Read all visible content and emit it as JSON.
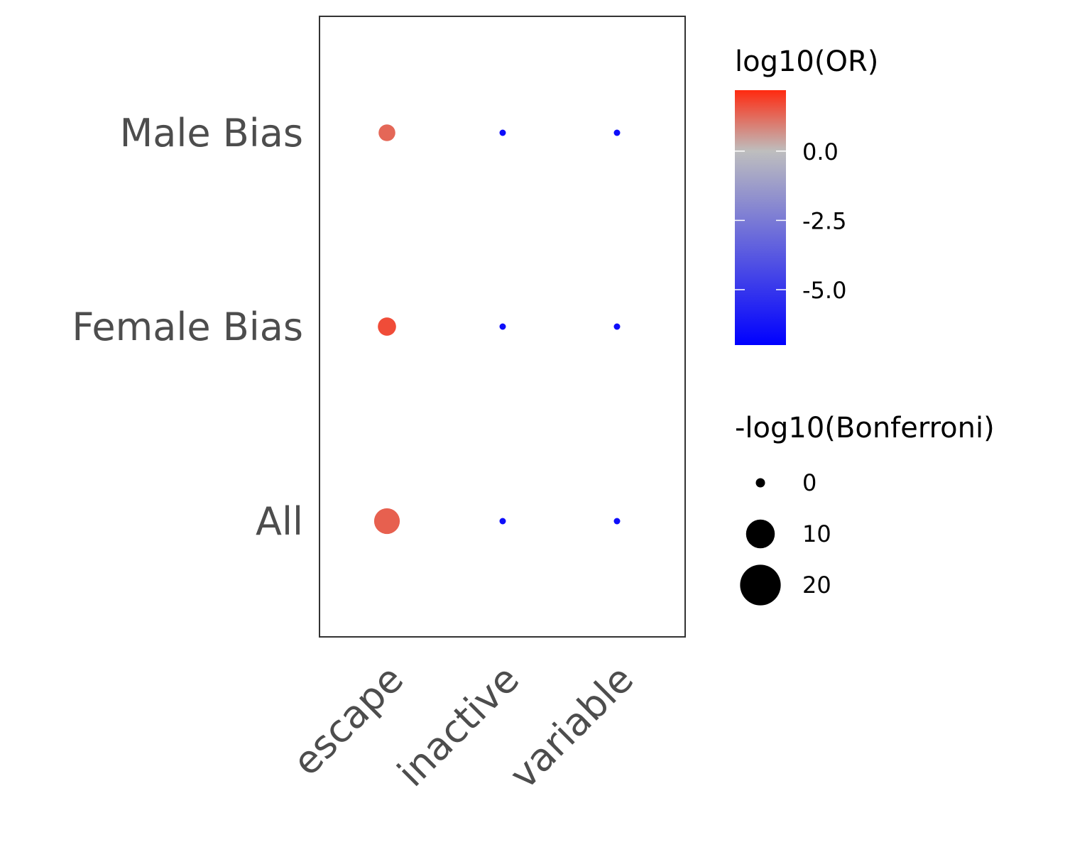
{
  "chart_data": {
    "type": "scatter",
    "x_categories": [
      "escape",
      "inactive",
      "variable"
    ],
    "y_categories": [
      "Male Bias",
      "Female Bias",
      "All"
    ],
    "points": [
      {
        "x": "escape",
        "y": "Male Bias",
        "log10_or": 1.3,
        "neg_log10_bonferroni": 7
      },
      {
        "x": "inactive",
        "y": "Male Bias",
        "log10_or": -6.5,
        "neg_log10_bonferroni": 0
      },
      {
        "x": "variable",
        "y": "Male Bias",
        "log10_or": -6.5,
        "neg_log10_bonferroni": 0
      },
      {
        "x": "escape",
        "y": "Female Bias",
        "log10_or": 1.7,
        "neg_log10_bonferroni": 9
      },
      {
        "x": "inactive",
        "y": "Female Bias",
        "log10_or": -6.5,
        "neg_log10_bonferroni": 0
      },
      {
        "x": "variable",
        "y": "Female Bias",
        "log10_or": -6.5,
        "neg_log10_bonferroni": 0
      },
      {
        "x": "escape",
        "y": "All",
        "log10_or": 1.4,
        "neg_log10_bonferroni": 23
      },
      {
        "x": "inactive",
        "y": "All",
        "log10_or": -6.5,
        "neg_log10_bonferroni": 0
      },
      {
        "x": "variable",
        "y": "All",
        "log10_or": -6.5,
        "neg_log10_bonferroni": 0
      }
    ],
    "color_legend": {
      "title": "log10(OR)",
      "range": [
        -7,
        2.2
      ],
      "ticks": [
        {
          "value": 0,
          "label": "0.0"
        },
        {
          "value": -2.5,
          "label": "-2.5"
        },
        {
          "value": -5,
          "label": "-5.0"
        }
      ],
      "low_color": "#0000ff",
      "mid_color": "#bebebe",
      "high_color": "#ff2a10"
    },
    "size_legend": {
      "title": "-log10(Bonferroni)",
      "entries": [
        {
          "value": 0,
          "label": "0"
        },
        {
          "value": 10,
          "label": "10"
        },
        {
          "value": 20,
          "label": "20"
        }
      ]
    },
    "grid": false,
    "legend_position": "right"
  }
}
